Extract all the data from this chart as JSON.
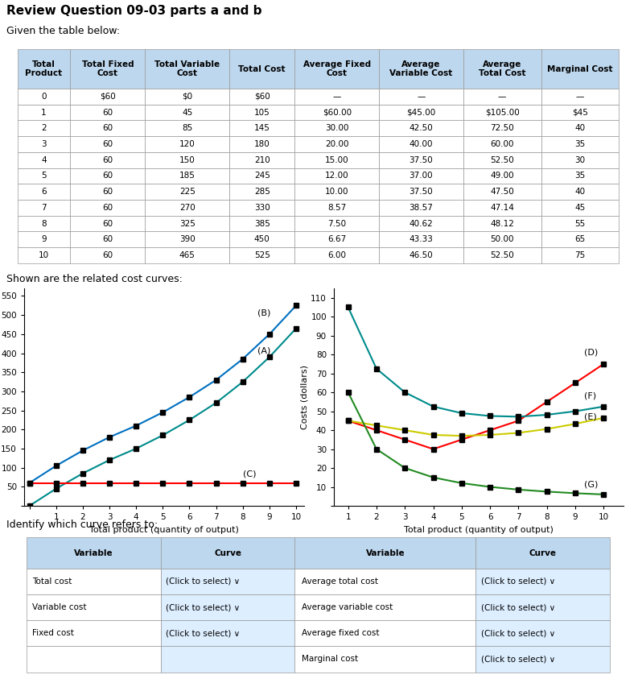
{
  "title": "Review Question 09-03 parts a and b",
  "subtitle": "Given the table below:",
  "table_headers": [
    "Total\nProduct",
    "Total Fixed\nCost",
    "Total Variable\nCost",
    "Total Cost",
    "Average Fixed\nCost",
    "Average\nVariable Cost",
    "Average\nTotal Cost",
    "Marginal Cost"
  ],
  "table_data": [
    [
      "0",
      "$60",
      "$0",
      "$60",
      "—",
      "—",
      "—",
      "—"
    ],
    [
      "1",
      "60",
      "45",
      "105",
      "$60.00",
      "$45.00",
      "$105.00",
      "$45"
    ],
    [
      "2",
      "60",
      "85",
      "145",
      "30.00",
      "42.50",
      "72.50",
      "40"
    ],
    [
      "3",
      "60",
      "120",
      "180",
      "20.00",
      "40.00",
      "60.00",
      "35"
    ],
    [
      "4",
      "60",
      "150",
      "210",
      "15.00",
      "37.50",
      "52.50",
      "30"
    ],
    [
      "5",
      "60",
      "185",
      "245",
      "12.00",
      "37.00",
      "49.00",
      "35"
    ],
    [
      "6",
      "60",
      "225",
      "285",
      "10.00",
      "37.50",
      "47.50",
      "40"
    ],
    [
      "7",
      "60",
      "270",
      "330",
      "8.57",
      "38.57",
      "47.14",
      "45"
    ],
    [
      "8",
      "60",
      "325",
      "385",
      "7.50",
      "40.62",
      "48.12",
      "55"
    ],
    [
      "9",
      "60",
      "390",
      "450",
      "6.67",
      "43.33",
      "50.00",
      "65"
    ],
    [
      "10",
      "60",
      "465",
      "525",
      "6.00",
      "46.50",
      "52.50",
      "75"
    ]
  ],
  "quantities": [
    0,
    1,
    2,
    3,
    4,
    5,
    6,
    7,
    8,
    9,
    10
  ],
  "quantities_no_zero": [
    1,
    2,
    3,
    4,
    5,
    6,
    7,
    8,
    9,
    10
  ],
  "total_cost": [
    60,
    105,
    145,
    180,
    210,
    245,
    285,
    330,
    385,
    450,
    525
  ],
  "variable_cost": [
    0,
    45,
    85,
    120,
    150,
    185,
    225,
    270,
    325,
    390,
    465
  ],
  "fixed_cost": [
    60,
    60,
    60,
    60,
    60,
    60,
    60,
    60,
    60,
    60,
    60
  ],
  "avg_total_cost": [
    105.0,
    72.5,
    60.0,
    52.5,
    49.0,
    47.5,
    47.14,
    48.12,
    50.0,
    52.5
  ],
  "avg_variable_cost": [
    45.0,
    42.5,
    40.0,
    37.5,
    37.0,
    37.5,
    38.57,
    40.62,
    43.33,
    46.5
  ],
  "avg_fixed_cost": [
    60.0,
    30.0,
    20.0,
    15.0,
    12.0,
    10.0,
    8.57,
    7.5,
    6.67,
    6.0
  ],
  "marginal_cost": [
    45,
    40,
    35,
    30,
    35,
    40,
    45,
    55,
    65,
    75
  ],
  "header_bg": "#BDD7EE",
  "curve_B_color": "#0070C0",
  "curve_A_color": "#008B8B",
  "curve_C_color": "#FF0000",
  "curve_D_color": "#FF0000",
  "curve_E_color": "#CCCC00",
  "curve_F_color": "#008B8B",
  "curve_G_color": "#228B22",
  "id_table_header_bg": "#BDD7EE",
  "identify_section": "Identify which curve refers to:"
}
